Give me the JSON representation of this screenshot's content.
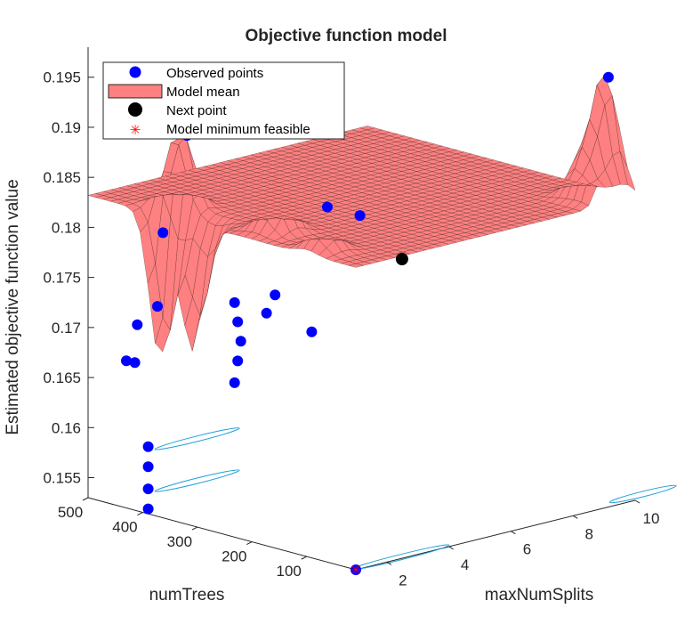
{
  "chart_data": {
    "type": "surface-3d",
    "title": "Objective function model",
    "xlabel": "maxNumSplits",
    "ylabel": "numTrees",
    "zlabel": "Estimated objective function value",
    "x_ticks": [
      "2",
      "4",
      "6",
      "8",
      "10"
    ],
    "y_ticks": [
      "100",
      "200",
      "300",
      "400",
      "500"
    ],
    "z_ticks": [
      "0.155",
      "0.16",
      "0.165",
      "0.17",
      "0.175",
      "0.18",
      "0.185",
      "0.19",
      "0.195"
    ],
    "xlim": [
      1,
      10
    ],
    "ylim": [
      10,
      500
    ],
    "zlim": [
      0.153,
      0.198
    ],
    "legend_position": "top-left",
    "legend": [
      {
        "label": "Observed points",
        "marker": "filled-circle",
        "color": "#0000ff"
      },
      {
        "label": "Model mean",
        "marker": "patch",
        "color": "#ff8080"
      },
      {
        "label": "Next point",
        "marker": "filled-circle",
        "color": "#000000"
      },
      {
        "label": "Model minimum feasible",
        "marker": "asterisk",
        "color": "#ff0000"
      }
    ],
    "model_mean_base": 0.1832,
    "model_mean_peaks": [
      {
        "x": 1,
        "y": 310,
        "z": 0.1705
      },
      {
        "x": 1.1,
        "y": 370,
        "z": 0.168
      },
      {
        "x": 1.8,
        "y": 380,
        "z": 0.192
      },
      {
        "x": 2,
        "y": 210,
        "z": 0.189
      },
      {
        "x": 1.6,
        "y": 100,
        "z": 0.186
      },
      {
        "x": 9.3,
        "y": 25,
        "z": 0.1955
      },
      {
        "x": 9.2,
        "y": 60,
        "z": 0.187
      }
    ],
    "observed_points": [
      {
        "x": 1,
        "y": 430,
        "z": 0.1968
      },
      {
        "x": 1.2,
        "y": 420,
        "z": 0.1923
      },
      {
        "x": 1.9,
        "y": 370,
        "z": 0.1904
      },
      {
        "x": 9.4,
        "y": 25,
        "z": 0.1955
      },
      {
        "x": 3.6,
        "y": 210,
        "z": 0.1843
      },
      {
        "x": 4.3,
        "y": 190,
        "z": 0.1832
      },
      {
        "x": 1.3,
        "y": 380,
        "z": 0.181
      },
      {
        "x": 2.8,
        "y": 260,
        "z": 0.1754
      },
      {
        "x": 2.2,
        "y": 300,
        "z": 0.1745
      },
      {
        "x": 2.7,
        "y": 270,
        "z": 0.1735
      },
      {
        "x": 1.3,
        "y": 390,
        "z": 0.1735
      },
      {
        "x": 3.1,
        "y": 210,
        "z": 0.1722
      },
      {
        "x": 1.0,
        "y": 410,
        "z": 0.1716
      },
      {
        "x": 2.3,
        "y": 300,
        "z": 0.1725
      },
      {
        "x": 2.4,
        "y": 300,
        "z": 0.1705
      },
      {
        "x": 2.3,
        "y": 300,
        "z": 0.1686
      },
      {
        "x": 1.0,
        "y": 430,
        "z": 0.1677
      },
      {
        "x": 1.1,
        "y": 420,
        "z": 0.1676
      },
      {
        "x": 2.2,
        "y": 300,
        "z": 0.1665
      },
      {
        "x": 1.0,
        "y": 390,
        "z": 0.1597
      },
      {
        "x": 1.0,
        "y": 390,
        "z": 0.1577
      },
      {
        "x": 1.0,
        "y": 390,
        "z": 0.1555
      },
      {
        "x": 1.0,
        "y": 390,
        "z": 0.1535
      },
      {
        "x": 1.0,
        "y": 10,
        "z": 0.153
      }
    ],
    "next_point": {
      "x": 4.6,
      "y": 130,
      "z": 0.1795
    },
    "model_minimum_feasible": {
      "x": 1,
      "y": 10,
      "z": 0.153
    }
  },
  "colors": {
    "surface_fill": "#ff8080",
    "surface_edge": "#000000",
    "observed": "#0000ff",
    "next_point": "#000000",
    "minimum": "#ff0000",
    "contour_cyan": "#1e9fd8",
    "contour_green": "#2ea86a"
  }
}
